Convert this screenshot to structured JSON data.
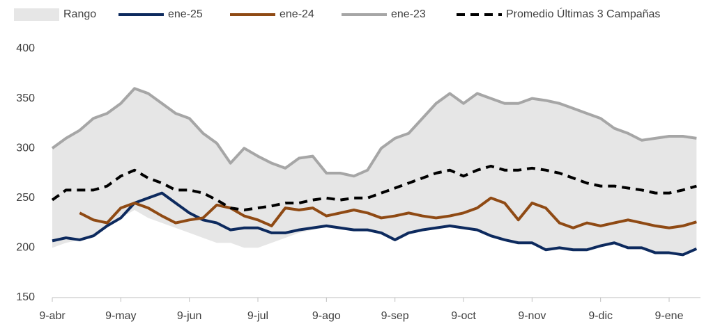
{
  "chart_data": {
    "type": "line",
    "categories": [
      "9-abr",
      null,
      null,
      null,
      null,
      "9-may",
      null,
      null,
      null,
      null,
      "9-jun",
      null,
      null,
      null,
      null,
      "9-jul",
      null,
      null,
      null,
      null,
      "9-ago",
      null,
      null,
      null,
      null,
      "9-sep",
      null,
      null,
      null,
      null,
      "9-oct",
      null,
      null,
      null,
      null,
      "9-nov",
      null,
      null,
      null,
      null,
      "9-dic",
      null,
      null,
      null,
      null,
      "9-ene",
      null,
      null
    ],
    "series": [
      {
        "name": "Rango",
        "type": "area",
        "color": "#e6e6e6",
        "values": [
          300,
          310,
          318,
          330,
          335,
          345,
          360,
          355,
          345,
          335,
          330,
          315,
          305,
          285,
          300,
          292,
          285,
          280,
          290,
          292,
          275,
          275,
          272,
          278,
          300,
          310,
          315,
          330,
          345,
          355,
          345,
          355,
          350,
          345,
          345,
          350,
          348,
          345,
          340,
          335,
          330,
          320,
          315,
          308,
          310,
          312,
          312,
          310
        ],
        "lower": [
          200,
          205,
          208,
          212,
          222,
          230,
          238,
          230,
          225,
          220,
          215,
          210,
          205,
          205,
          200,
          200,
          205,
          210,
          215,
          218,
          222,
          220,
          218,
          218,
          215,
          208,
          215,
          218,
          220,
          222,
          220,
          218,
          212,
          208,
          205,
          205,
          198,
          200,
          198,
          198,
          202,
          205,
          200,
          200,
          195,
          195,
          193,
          199
        ]
      },
      {
        "name": "ene-25",
        "color": "#0d2a5e",
        "values": [
          207,
          210,
          208,
          212,
          222,
          230,
          245,
          250,
          255,
          245,
          235,
          228,
          225,
          218,
          220,
          220,
          215,
          215,
          218,
          220,
          222,
          220,
          218,
          218,
          215,
          208,
          215,
          218,
          220,
          222,
          220,
          218,
          212,
          208,
          205,
          205,
          198,
          200,
          198,
          198,
          202,
          205,
          200,
          200,
          195,
          195,
          193,
          199
        ]
      },
      {
        "name": "ene-24",
        "color": "#8f4a14",
        "values": [
          null,
          null,
          235,
          228,
          225,
          240,
          245,
          240,
          232,
          225,
          228,
          230,
          243,
          240,
          232,
          228,
          222,
          240,
          238,
          240,
          232,
          235,
          238,
          235,
          230,
          232,
          235,
          232,
          230,
          232,
          235,
          240,
          250,
          245,
          228,
          245,
          240,
          225,
          220,
          225,
          222,
          225,
          228,
          225,
          222,
          220,
          222,
          226
        ]
      },
      {
        "name": "ene-23",
        "color": "#a6a6a6",
        "values": [
          300,
          310,
          318,
          330,
          335,
          345,
          360,
          355,
          345,
          335,
          330,
          315,
          305,
          285,
          300,
          292,
          285,
          280,
          290,
          292,
          275,
          275,
          272,
          278,
          300,
          310,
          315,
          330,
          345,
          355,
          345,
          355,
          350,
          345,
          345,
          350,
          348,
          345,
          340,
          335,
          330,
          320,
          315,
          308,
          310,
          312,
          312,
          310
        ]
      },
      {
        "name": "Promedio Últimas 3 Campañas",
        "color": "#000000",
        "dashed": true,
        "values": [
          248,
          258,
          258,
          258,
          262,
          272,
          278,
          270,
          265,
          258,
          258,
          255,
          248,
          240,
          238,
          240,
          242,
          245,
          245,
          248,
          250,
          248,
          250,
          250,
          255,
          260,
          265,
          270,
          275,
          278,
          272,
          278,
          282,
          278,
          278,
          280,
          278,
          275,
          270,
          265,
          262,
          262,
          260,
          258,
          255,
          255,
          258,
          262
        ]
      }
    ],
    "ylim": [
      150,
      400
    ],
    "yticks": [
      150,
      200,
      250,
      300,
      350,
      400
    ],
    "grid": false,
    "legend": "top"
  }
}
